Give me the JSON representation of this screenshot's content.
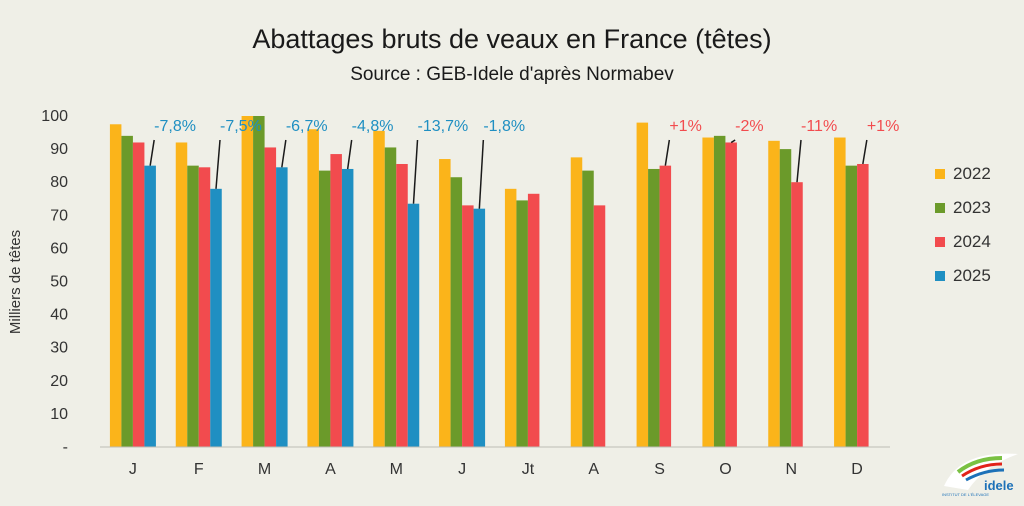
{
  "chart_data": {
    "type": "bar",
    "title": "Abattages bruts de veaux en France (têtes)",
    "subtitle": "Source : GEB-Idele d'après Normabev",
    "ylabel": "Milliers de têtes",
    "ylim": [
      0,
      100
    ],
    "yticks": [
      "-",
      "10",
      "20",
      "30",
      "40",
      "50",
      "60",
      "70",
      "80",
      "90",
      "100"
    ],
    "categories": [
      "J",
      "F",
      "M",
      "A",
      "M",
      "J",
      "Jt",
      "A",
      "S",
      "O",
      "N",
      "D"
    ],
    "legend_position": "right",
    "series": [
      {
        "name": "2022",
        "color": "#fbb41a",
        "values": [
          97.5,
          92,
          100,
          96,
          95.5,
          87,
          78,
          87.5,
          98,
          93.5,
          92.5,
          93.5
        ]
      },
      {
        "name": "2023",
        "color": "#6b9a2a",
        "values": [
          94,
          85,
          100,
          83.5,
          90.5,
          81.5,
          74.5,
          83.5,
          84,
          94,
          90,
          85
        ]
      },
      {
        "name": "2024",
        "color": "#f24b4e",
        "values": [
          92,
          84.5,
          90.5,
          88.5,
          85.5,
          73,
          76.5,
          73,
          85,
          92,
          80,
          85.5
        ]
      },
      {
        "name": "2025",
        "color": "#1f8fc2",
        "values": [
          85,
          78,
          84.5,
          84,
          73.5,
          72,
          null,
          null,
          null,
          null,
          null,
          null
        ]
      }
    ],
    "annotations": [
      {
        "text": "-7,8%",
        "category_index": 0,
        "color": "#1f8fc2"
      },
      {
        "text": "-7,5%",
        "category_index": 1,
        "color": "#1f8fc2"
      },
      {
        "text": "-6,7%",
        "category_index": 2,
        "color": "#1f8fc2"
      },
      {
        "text": "-4,8%",
        "category_index": 3,
        "color": "#1f8fc2"
      },
      {
        "text": "-13,7%",
        "category_index": 4,
        "color": "#1f8fc2"
      },
      {
        "text": "-1,8%",
        "category_index": 5,
        "color": "#1f8fc2"
      },
      {
        "text": "+1%",
        "category_index": 8,
        "color": "#f24b4e"
      },
      {
        "text": "-2%",
        "category_index": 9,
        "color": "#f24b4e"
      },
      {
        "text": "-11%",
        "category_index": 10,
        "color": "#f24b4e"
      },
      {
        "text": "+1%",
        "category_index": 11,
        "color": "#f24b4e"
      }
    ],
    "grid": false
  },
  "logo": {
    "name": "idele-logo-icon",
    "text": "idele",
    "subtext": "INSTITUT DE L'ÉLEVAGE"
  }
}
